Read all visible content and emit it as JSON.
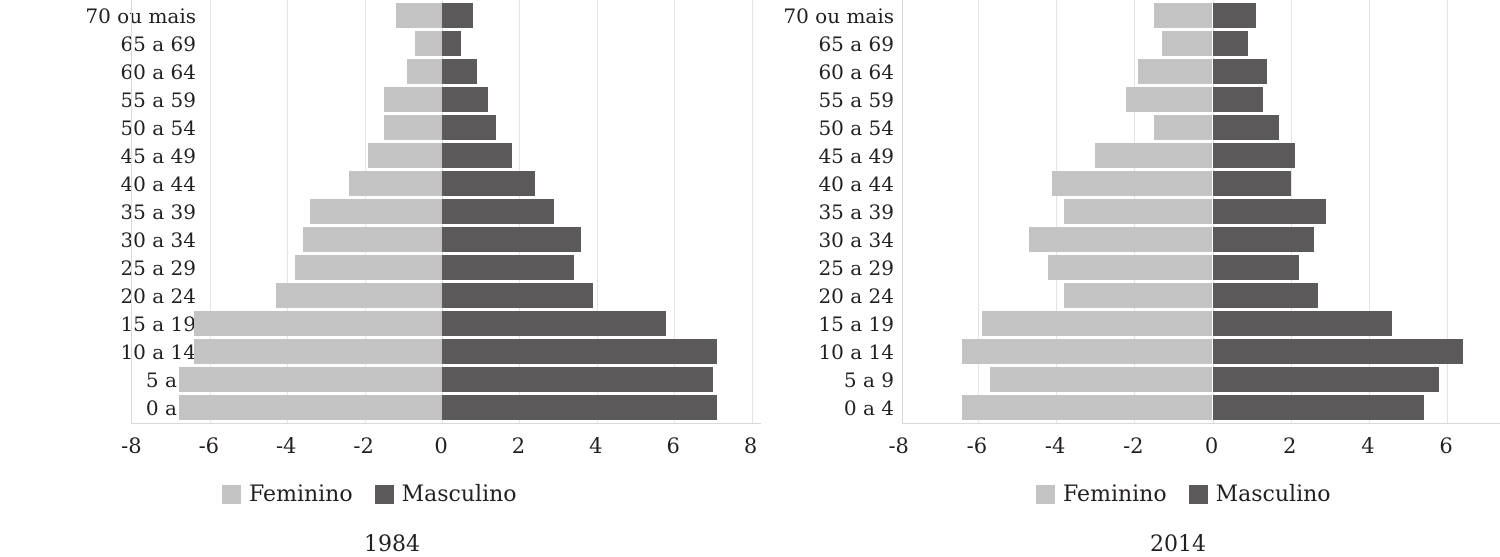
{
  "chart_data": [
    {
      "type": "bar",
      "orientation": "horizontal",
      "title": "1984",
      "xlabel": "",
      "ylabel": "",
      "xlim": [
        -8,
        8
      ],
      "xticks": [
        "-8",
        "-6",
        "-4",
        "-2",
        "0",
        "2",
        "4",
        "6",
        "8"
      ],
      "grid": true,
      "legend_position": "bottom",
      "categories": [
        "70 ou mais",
        "65 a 69",
        "60 a 64",
        "55 a 59",
        "50 a 54",
        "45 a 49",
        "40 a 44",
        "35 a 39",
        "30 a 34",
        "25 a 29",
        "20 a 24",
        "15 a 19",
        "10 a 14",
        "5 a 9",
        "0 a 4"
      ],
      "series": [
        {
          "name": "Feminino",
          "color": "#c3c3c4",
          "values": [
            -1.2,
            -0.7,
            -0.9,
            -1.5,
            -1.5,
            -1.9,
            -2.4,
            -3.4,
            -3.6,
            -3.8,
            -4.3,
            -6.4,
            -6.4,
            -6.8,
            -6.8
          ]
        },
        {
          "name": "Masculino",
          "color": "#5b595a",
          "values": [
            0.8,
            0.5,
            0.9,
            1.2,
            1.4,
            1.8,
            2.4,
            2.9,
            3.6,
            3.4,
            3.9,
            5.8,
            7.1,
            7.0,
            7.1
          ]
        }
      ]
    },
    {
      "type": "bar",
      "orientation": "horizontal",
      "title": "2014",
      "xlabel": "",
      "ylabel": "",
      "xlim": [
        -8,
        7.5
      ],
      "xticks": [
        "-8",
        "-6",
        "-4",
        "-2",
        "0",
        "2",
        "4",
        "6"
      ],
      "grid": true,
      "legend_position": "bottom",
      "categories": [
        "70 ou mais",
        "65 a 69",
        "60 a 64",
        "55 a 59",
        "50 a 54",
        "45 a 49",
        "40 a 44",
        "35 a 39",
        "30 a 34",
        "25 a 29",
        "20 a 24",
        "15 a 19",
        "10 a 14",
        "5 a 9",
        "0 a 4"
      ],
      "series": [
        {
          "name": "Feminino",
          "color": "#c3c3c4",
          "values": [
            -1.5,
            -1.3,
            -1.9,
            -2.2,
            -1.5,
            -3.0,
            -4.1,
            -3.8,
            -4.7,
            -4.2,
            -3.8,
            -5.9,
            -6.4,
            -5.7,
            -6.4
          ]
        },
        {
          "name": "Masculino",
          "color": "#5b595a",
          "values": [
            1.1,
            0.9,
            1.4,
            1.3,
            1.7,
            2.1,
            2.0,
            2.9,
            2.6,
            2.2,
            2.7,
            4.6,
            6.4,
            5.8,
            5.4
          ]
        }
      ]
    }
  ],
  "charts": [
    {
      "year_label": "1984",
      "legend": {
        "female": "Feminino",
        "male": "Masculino"
      }
    },
    {
      "year_label": "2014",
      "legend": {
        "female": "Feminino",
        "male": "Masculino"
      }
    }
  ]
}
